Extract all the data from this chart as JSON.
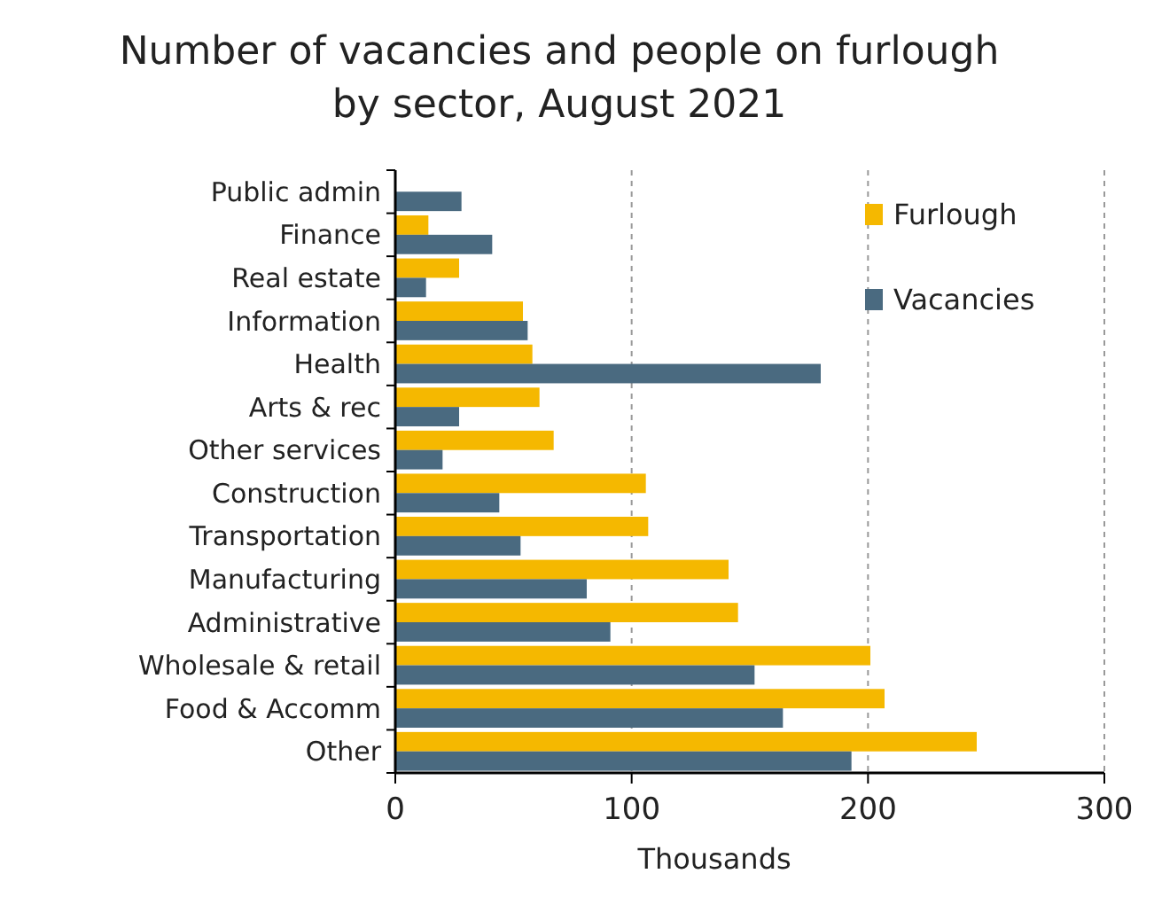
{
  "chart_data": {
    "type": "bar",
    "orientation": "horizontal",
    "title": "Number of vacancies and people on furlough by sector, August 2021",
    "xlabel": "Thousands",
    "categories": [
      "Public admin",
      "Finance",
      "Real estate",
      "Information",
      "Health",
      "Arts & rec",
      "Other services",
      "Construction",
      "Transportation",
      "Manufacturing",
      "Administrative",
      "Wholesale & retail",
      "Food & Accomm",
      "Other"
    ],
    "series": [
      {
        "name": "Furlough",
        "color": "#f5b800",
        "values": [
          null,
          14,
          27,
          54,
          58,
          61,
          67,
          106,
          107,
          141,
          145,
          201,
          207,
          246
        ]
      },
      {
        "name": "Vacancies",
        "color": "#4a6a80",
        "values": [
          28,
          41,
          13,
          56,
          180,
          27,
          20,
          44,
          53,
          81,
          91,
          152,
          164,
          193
        ]
      }
    ],
    "xlim": [
      0,
      300
    ],
    "xticks": [
      0,
      100,
      200,
      300
    ],
    "grid": "x",
    "legend": "top right"
  }
}
